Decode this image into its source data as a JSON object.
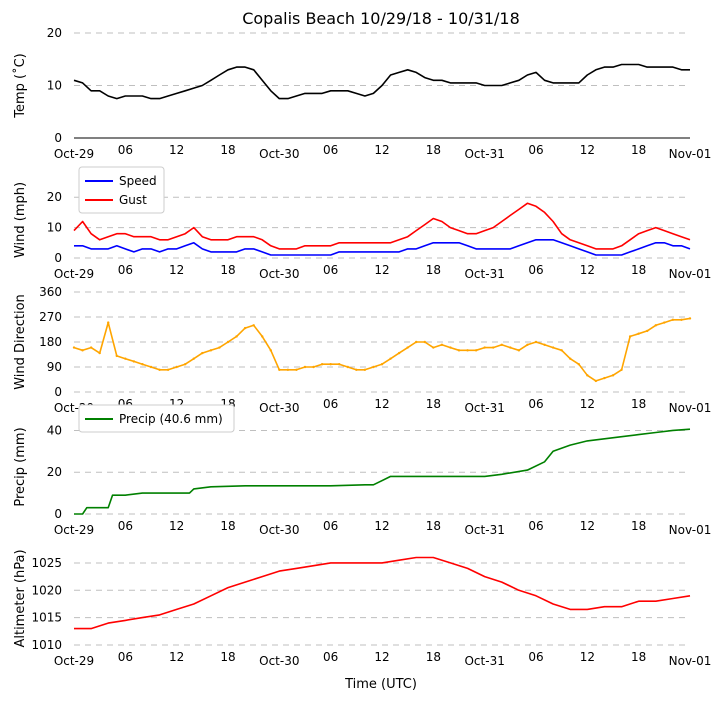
{
  "title": "Copalis Beach 10/29/18 - 10/31/18",
  "xlabel": "Time (UTC)",
  "x_ticks": [
    "Oct-29",
    "06",
    "12",
    "18",
    "Oct-30",
    "06",
    "12",
    "18",
    "Oct-31",
    "06",
    "12",
    "18",
    "Nov-01"
  ],
  "colors": {
    "temp": "#000000",
    "speed": "#0000ff",
    "gust": "#ff0000",
    "dir": "#ffa500",
    "precip": "#008000",
    "alt": "#ff0000",
    "grid": "#bfbfbf"
  },
  "chart_data": [
    {
      "type": "line",
      "ylabel": "Temp ($^\\circ$C)",
      "ylabel_text": "Temp (˚C)",
      "ylim": [
        0,
        20
      ],
      "yticks": [
        "0",
        "10",
        "20"
      ],
      "grid": true,
      "xlim": [
        0,
        72
      ],
      "series": [
        {
          "name": "",
          "color": "#000000",
          "x": [
            0,
            1,
            2,
            3,
            4,
            5,
            6,
            7,
            8,
            9,
            10,
            11,
            12,
            13,
            14,
            15,
            16,
            17,
            18,
            19,
            20,
            21,
            22,
            23,
            24,
            25,
            26,
            27,
            28,
            29,
            30,
            31,
            32,
            33,
            34,
            35,
            36,
            37,
            38,
            39,
            40,
            41,
            42,
            43,
            44,
            45,
            46,
            47,
            48,
            49,
            50,
            51,
            52,
            53,
            54,
            55,
            56,
            57,
            58,
            59,
            60,
            61,
            62,
            63,
            64,
            65,
            66,
            67,
            68,
            69,
            70,
            71,
            72
          ],
          "values": [
            11,
            10.5,
            9,
            9,
            8,
            7.5,
            8,
            8,
            8,
            7.5,
            7.5,
            8,
            8.5,
            9,
            9.5,
            10,
            11,
            12,
            13,
            13.5,
            13.5,
            13,
            11,
            9,
            7.5,
            7.5,
            8,
            8.5,
            8.5,
            8.5,
            9,
            9,
            9,
            8.5,
            8,
            8.5,
            10,
            12,
            12.5,
            13,
            12.5,
            11.5,
            11,
            11,
            10.5,
            10.5,
            10.5,
            10.5,
            10,
            10,
            10,
            10.5,
            11,
            12,
            12.5,
            11,
            10.5,
            10.5,
            10.5,
            10.5,
            12,
            13,
            13.5,
            13.5,
            14,
            14,
            14,
            13.5,
            13.5,
            13.5,
            13.5,
            13,
            13
          ]
        }
      ]
    },
    {
      "type": "line",
      "ylabel": "Wind (mph)",
      "ylim": [
        0,
        25
      ],
      "yticks": [
        "0",
        "10",
        "20"
      ],
      "grid": true,
      "legend": "upper-left",
      "xlim": [
        0,
        72
      ],
      "series": [
        {
          "name": "Speed",
          "color": "#0000ff",
          "x": [
            0,
            1,
            2,
            3,
            4,
            5,
            6,
            7,
            8,
            9,
            10,
            11,
            12,
            13,
            14,
            15,
            16,
            17,
            18,
            19,
            20,
            21,
            22,
            23,
            24,
            25,
            26,
            27,
            28,
            29,
            30,
            31,
            32,
            33,
            34,
            35,
            36,
            37,
            38,
            39,
            40,
            41,
            42,
            43,
            44,
            45,
            46,
            47,
            48,
            49,
            50,
            51,
            52,
            53,
            54,
            55,
            56,
            57,
            58,
            59,
            60,
            61,
            62,
            63,
            64,
            65,
            66,
            67,
            68,
            69,
            70,
            71,
            72
          ],
          "values": [
            4,
            4,
            3,
            3,
            3,
            4,
            3,
            2,
            3,
            3,
            2,
            3,
            3,
            4,
            5,
            3,
            2,
            2,
            2,
            2,
            3,
            3,
            2,
            1,
            1,
            1,
            1,
            1,
            1,
            1,
            1,
            2,
            2,
            2,
            2,
            2,
            2,
            2,
            2,
            3,
            3,
            4,
            5,
            5,
            5,
            5,
            4,
            3,
            3,
            3,
            3,
            3,
            4,
            5,
            6,
            6,
            6,
            5,
            4,
            3,
            2,
            1,
            1,
            1,
            1,
            2,
            3,
            4,
            5,
            5,
            4,
            4,
            3
          ]
        },
        {
          "name": "Gust",
          "color": "#ff0000",
          "x": [
            0,
            1,
            2,
            3,
            4,
            5,
            6,
            7,
            8,
            9,
            10,
            11,
            12,
            13,
            14,
            15,
            16,
            17,
            18,
            19,
            20,
            21,
            22,
            23,
            24,
            25,
            26,
            27,
            28,
            29,
            30,
            31,
            32,
            33,
            34,
            35,
            36,
            37,
            38,
            39,
            40,
            41,
            42,
            43,
            44,
            45,
            46,
            47,
            48,
            49,
            50,
            51,
            52,
            53,
            54,
            55,
            56,
            57,
            58,
            59,
            60,
            61,
            62,
            63,
            64,
            65,
            66,
            67,
            68,
            69,
            70,
            71,
            72
          ],
          "values": [
            9,
            12,
            8,
            6,
            7,
            8,
            8,
            7,
            7,
            7,
            6,
            6,
            7,
            8,
            10,
            7,
            6,
            6,
            6,
            7,
            7,
            7,
            6,
            4,
            3,
            3,
            3,
            4,
            4,
            4,
            4,
            5,
            5,
            5,
            5,
            5,
            5,
            5,
            6,
            7,
            9,
            11,
            13,
            12,
            10,
            9,
            8,
            8,
            9,
            10,
            12,
            14,
            16,
            18,
            17,
            15,
            12,
            8,
            6,
            5,
            4,
            3,
            3,
            3,
            4,
            6,
            8,
            9,
            10,
            9,
            8,
            7,
            6
          ]
        }
      ]
    },
    {
      "type": "scatter",
      "ylabel": "Wind Direction",
      "ylim": [
        0,
        360
      ],
      "yticks": [
        "0",
        "90",
        "180",
        "270",
        "360"
      ],
      "grid": true,
      "xlim": [
        0,
        72
      ],
      "series": [
        {
          "name": "",
          "color": "#ffa500",
          "x": [
            0,
            1,
            2,
            3,
            4,
            5,
            6,
            7,
            8,
            9,
            10,
            11,
            12,
            13,
            14,
            15,
            16,
            17,
            18,
            19,
            20,
            21,
            22,
            23,
            24,
            25,
            26,
            27,
            28,
            29,
            30,
            31,
            32,
            33,
            34,
            35,
            36,
            37,
            38,
            39,
            40,
            41,
            42,
            43,
            44,
            45,
            46,
            47,
            48,
            49,
            50,
            51,
            52,
            53,
            54,
            55,
            56,
            57,
            58,
            59,
            60,
            61,
            62,
            63,
            64,
            65,
            66,
            67,
            68,
            69,
            70,
            71,
            72
          ],
          "values": [
            160,
            150,
            160,
            140,
            250,
            130,
            120,
            110,
            100,
            90,
            80,
            80,
            90,
            100,
            120,
            140,
            150,
            160,
            180,
            200,
            230,
            240,
            200,
            150,
            80,
            80,
            80,
            90,
            90,
            100,
            100,
            100,
            90,
            80,
            80,
            90,
            100,
            120,
            140,
            160,
            180,
            180,
            160,
            170,
            160,
            150,
            150,
            150,
            160,
            160,
            170,
            160,
            150,
            170,
            180,
            170,
            160,
            150,
            120,
            100,
            60,
            40,
            50,
            60,
            80,
            200,
            210,
            220,
            240,
            250,
            260,
            260,
            265
          ]
        }
      ]
    },
    {
      "type": "line",
      "ylabel": "Precip (mm)",
      "ylim": [
        0,
        45
      ],
      "yticks": [
        "0",
        "20",
        "40"
      ],
      "grid": true,
      "legend": "upper-left",
      "xlim": [
        0,
        72
      ],
      "series": [
        {
          "name": "Precip (40.6 mm)",
          "color": "#008000",
          "x": [
            0,
            1,
            1.5,
            3,
            4,
            4.5,
            6,
            8,
            10,
            12,
            13.5,
            14,
            16,
            20,
            24,
            30,
            34,
            35,
            37,
            40,
            44,
            48,
            50,
            53,
            55,
            56,
            58,
            60,
            62,
            64,
            66,
            68,
            70,
            72
          ],
          "values": [
            0,
            0,
            3,
            3,
            3,
            9,
            9,
            10,
            10,
            10,
            10,
            12,
            13,
            13.5,
            13.5,
            13.5,
            14,
            14,
            18,
            18,
            18,
            18,
            19,
            21,
            25,
            30,
            33,
            35,
            36,
            37,
            38,
            39,
            40,
            40.6
          ]
        }
      ]
    },
    {
      "type": "line",
      "ylabel": "Altimeter (hPa)",
      "ylim": [
        1010,
        1027
      ],
      "yticks": [
        "1010",
        "1015",
        "1020",
        "1025"
      ],
      "grid": true,
      "xlim": [
        0,
        72
      ],
      "series": [
        {
          "name": "",
          "color": "#ff0000",
          "x": [
            0,
            2,
            4,
            6,
            8,
            10,
            12,
            14,
            16,
            18,
            20,
            22,
            24,
            26,
            28,
            30,
            32,
            34,
            36,
            38,
            40,
            42,
            44,
            46,
            48,
            50,
            52,
            54,
            56,
            58,
            60,
            62,
            64,
            66,
            68,
            70,
            72
          ],
          "values": [
            1013,
            1013,
            1014,
            1014.5,
            1015,
            1015.5,
            1016.5,
            1017.5,
            1019,
            1020.5,
            1021.5,
            1022.5,
            1023.5,
            1024,
            1024.5,
            1025,
            1025,
            1025,
            1025,
            1025.5,
            1026,
            1026,
            1025,
            1024,
            1022.5,
            1021.5,
            1020,
            1019,
            1017.5,
            1016.5,
            1016.5,
            1017,
            1017,
            1018,
            1018,
            1018.5,
            1019
          ]
        }
      ]
    }
  ]
}
